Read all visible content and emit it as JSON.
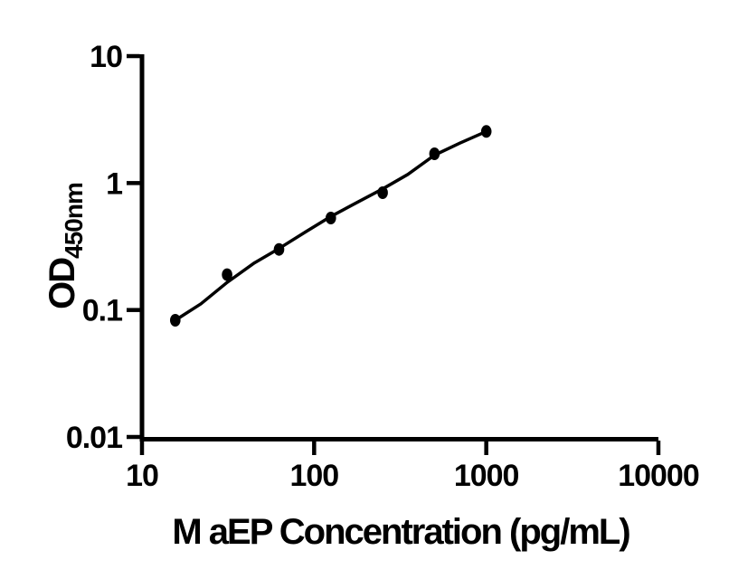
{
  "chart_data": {
    "type": "scatter",
    "title": "",
    "xlabel": "M aEP Concentration (pg/mL)",
    "ylabel_main": "OD",
    "ylabel_sub": "450nm",
    "x_scale": "log",
    "y_scale": "log",
    "xlim": [
      10,
      10000
    ],
    "ylim": [
      0.01,
      10
    ],
    "x_ticks": [
      10,
      100,
      1000,
      10000
    ],
    "x_tick_labels": [
      "10",
      "100",
      "1000",
      "10000"
    ],
    "y_ticks": [
      0.01,
      0.1,
      1,
      10
    ],
    "y_tick_labels": [
      "0.01",
      "0.1",
      "1",
      "10"
    ],
    "grid": false,
    "legend": "none",
    "series": [
      {
        "name": "standard-curve-points",
        "x": [
          15.6,
          31.2,
          62.5,
          125,
          250,
          500,
          1000
        ],
        "y": [
          0.083,
          0.19,
          0.3,
          0.53,
          0.84,
          1.7,
          2.55
        ]
      }
    ],
    "fit_curve": {
      "name": "four-parameter-fit",
      "x": [
        15.6,
        22,
        31.2,
        45,
        62.5,
        90,
        125,
        180,
        250,
        350,
        500,
        700,
        1000
      ],
      "y": [
        0.083,
        0.112,
        0.165,
        0.235,
        0.305,
        0.415,
        0.545,
        0.71,
        0.9,
        1.17,
        1.66,
        2.06,
        2.55
      ]
    },
    "colors": {
      "axis": "#000000",
      "marker": "#000000",
      "line": "#000000",
      "background": "#ffffff"
    }
  }
}
